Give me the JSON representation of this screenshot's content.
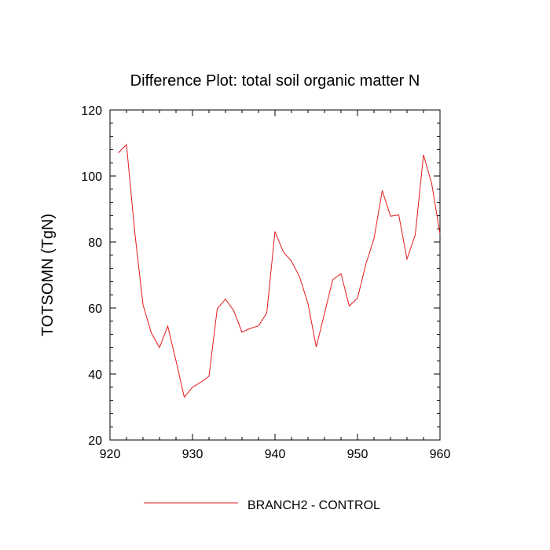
{
  "chart_data": {
    "type": "line",
    "title": "Difference Plot: total soil organic matter N",
    "xlabel": "",
    "ylabel": "TOTSOMN  (TgN)",
    "xlim": [
      920,
      960
    ],
    "ylim": [
      20,
      120
    ],
    "x_ticks": [
      920,
      930,
      940,
      950,
      960
    ],
    "y_ticks": [
      20,
      40,
      60,
      80,
      100,
      120
    ],
    "grid": false,
    "legend_position": "bottom-center",
    "series": [
      {
        "name": "BRANCH2 - CONTROL",
        "color": "#e41a1c",
        "x": [
          921,
          922,
          923,
          924,
          925,
          926,
          927,
          928,
          929,
          930,
          931,
          932,
          933,
          934,
          935,
          936,
          937,
          938,
          939,
          940,
          941,
          942,
          943,
          944,
          945,
          946,
          947,
          948,
          949,
          950,
          951,
          952,
          953,
          954,
          955,
          956,
          957,
          958,
          959,
          960
        ],
        "y": [
          107,
          109.5,
          83,
          61,
          52.5,
          48,
          54.5,
          44,
          33,
          36,
          37.5,
          39.3,
          59.8,
          62.7,
          59.2,
          52.7,
          53.8,
          54.6,
          58.5,
          83.2,
          77,
          74.2,
          69.3,
          61.3,
          48.2,
          58.4,
          68.6,
          70.4,
          60.6,
          63,
          73.2,
          81,
          95.6,
          87.8,
          88.2,
          74.8,
          82.2,
          106.4,
          97.6,
          82.4
        ]
      }
    ]
  }
}
